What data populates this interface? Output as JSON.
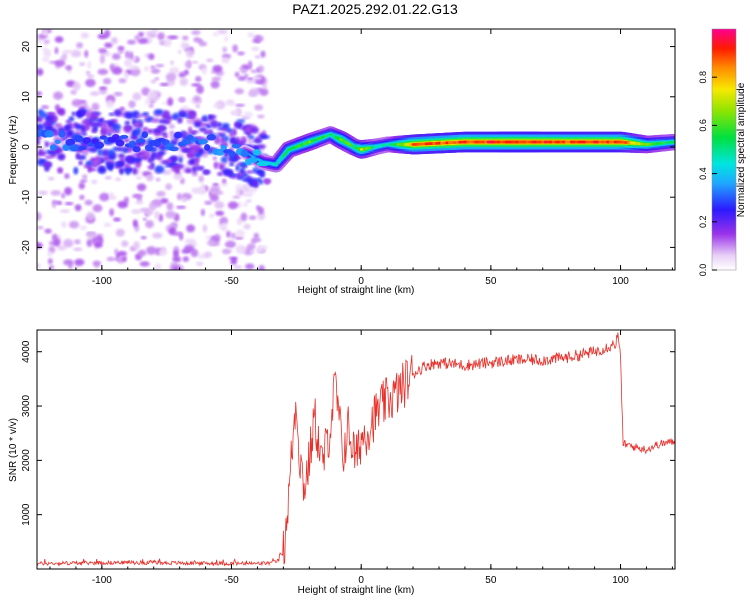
{
  "figure_title": "PAZ1.2025.292.01.22.G13",
  "colors": {
    "snr_line": "#e8302a",
    "axis": "#000000",
    "background": "#ffffff"
  },
  "chart_data": [
    {
      "type": "heatmap",
      "title": "PAZ1.2025.292.01.22.G13",
      "xlabel": "Height of straight line (km)",
      "ylabel": "Frequency (Hz)",
      "xlim": [
        -125,
        121
      ],
      "ylim": [
        -24.5,
        23.5
      ],
      "xticks": [
        -100,
        -50,
        0,
        50,
        100
      ],
      "yticks": [
        -20,
        -10,
        0,
        10,
        20
      ],
      "colorbar": {
        "label": "Normalized spectral amplitude",
        "range": [
          0,
          1
        ],
        "ticks": [
          0.0,
          0.2,
          0.4,
          0.6,
          0.8
        ],
        "tick_labels": [
          "0.0",
          "0.2",
          "0.4",
          "0.6",
          "0.8"
        ],
        "colormap": "rainbow (white–violet–blue–cyan–green–yellow–red–magenta)"
      },
      "description_ridge": {
        "x": [
          -125,
          -100,
          -80,
          -60,
          -45,
          -38,
          -33,
          -28,
          -20,
          -12,
          -8,
          -3,
          0,
          5,
          10,
          20,
          40,
          60,
          80,
          100,
          110,
          121
        ],
        "freq": [
          1.5,
          1.0,
          1.0,
          1.0,
          -1.0,
          -3.0,
          -3.5,
          -0.5,
          1.0,
          2.5,
          1.5,
          0.0,
          -0.5,
          0.0,
          0.5,
          0.5,
          1.0,
          1.0,
          1.0,
          1.0,
          0.5,
          1.0
        ],
        "amplitude": [
          0.28,
          0.22,
          0.26,
          0.25,
          0.3,
          0.4,
          0.45,
          0.55,
          0.6,
          0.5,
          0.65,
          0.55,
          0.7,
          0.5,
          0.45,
          0.85,
          0.9,
          0.92,
          0.9,
          0.9,
          0.6,
          0.5
        ]
      }
    },
    {
      "type": "line",
      "title": "",
      "xlabel": "Height of straight line (km)",
      "ylabel": "SNR (10 * v/v)",
      "xlim": [
        -125,
        121
      ],
      "ylim": [
        0,
        4400
      ],
      "xticks": [
        -100,
        -50,
        0,
        50,
        100
      ],
      "yticks": [
        1000,
        2000,
        3000,
        4000
      ],
      "series": [
        {
          "name": "SNR",
          "x": [
            -125,
            -110,
            -90,
            -70,
            -50,
            -40,
            -35,
            -32,
            -30,
            -29,
            -28,
            -27,
            -26,
            -25,
            -24,
            -22,
            -20,
            -18,
            -15,
            -12,
            -10,
            -7,
            -5,
            -2,
            0,
            3,
            5,
            8,
            10,
            13,
            15,
            18,
            20,
            25,
            30,
            40,
            50,
            60,
            70,
            80,
            90,
            98,
            99,
            100,
            101,
            105,
            110,
            115,
            121
          ],
          "y": [
            100,
            110,
            120,
            110,
            100,
            100,
            110,
            150,
            300,
            800,
            1300,
            2000,
            2600,
            3200,
            2200,
            1500,
            2000,
            2800,
            1900,
            2600,
            3400,
            2100,
            2600,
            2000,
            2400,
            2600,
            2800,
            3000,
            3100,
            3200,
            3300,
            3500,
            3600,
            3750,
            3800,
            3750,
            3800,
            3850,
            3850,
            3900,
            4000,
            4150,
            4300,
            3900,
            2300,
            2250,
            2200,
            2300,
            2350
          ]
        }
      ]
    }
  ]
}
